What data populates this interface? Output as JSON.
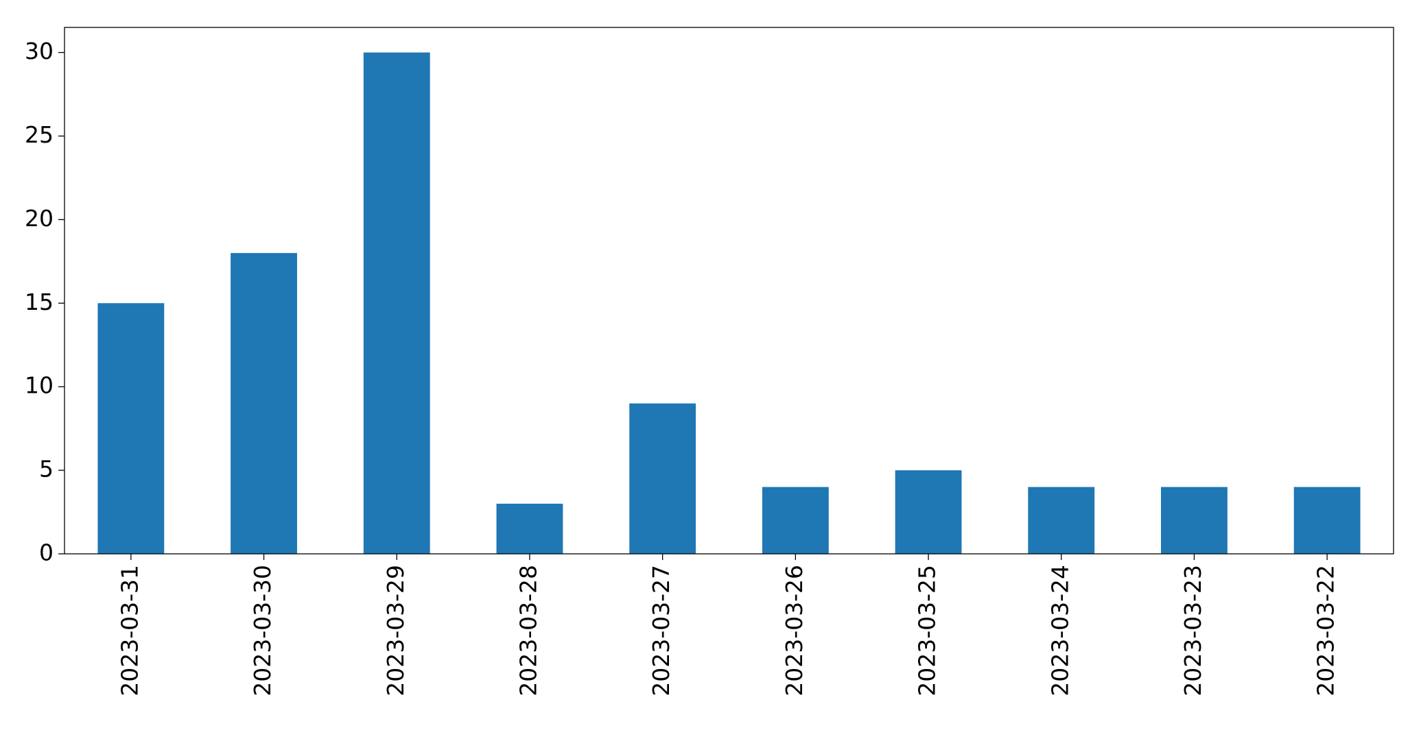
{
  "chart_data": {
    "type": "bar",
    "categories": [
      "2023-03-31",
      "2023-03-30",
      "2023-03-29",
      "2023-03-28",
      "2023-03-27",
      "2023-03-26",
      "2023-03-25",
      "2023-03-24",
      "2023-03-23",
      "2023-03-22"
    ],
    "values": [
      15,
      18,
      30,
      3,
      9,
      4,
      5,
      4,
      4,
      4
    ],
    "color": "#1f77b4",
    "ylim": [
      0,
      31.5
    ],
    "yticks": [
      0,
      5,
      10,
      15,
      20,
      25,
      30
    ],
    "grid": false
  }
}
